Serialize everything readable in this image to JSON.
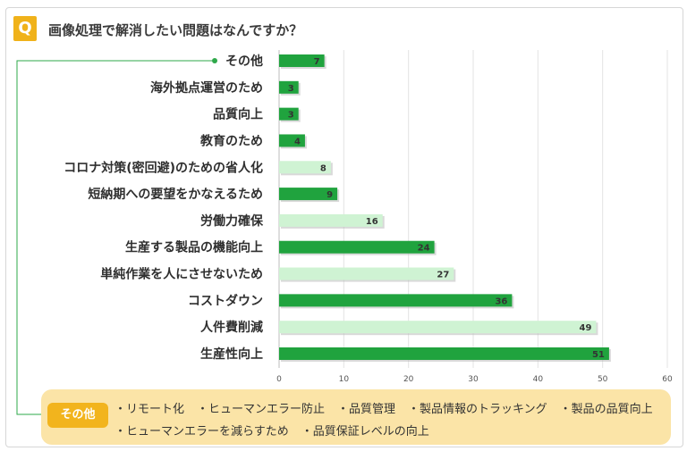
{
  "header": {
    "q_badge": "Q",
    "title": "画像処理で解消したい問題はなんですか？"
  },
  "colors": {
    "bar_dark": "#20a33e",
    "bar_light": "#cff3d3",
    "accent": "#f0b21a",
    "note_bg": "#fbe4a7",
    "connector": "#2ea84a"
  },
  "chart_data": {
    "type": "bar",
    "orientation": "horizontal",
    "categories": [
      "その他",
      "海外拠点運営のため",
      "品質向上",
      "教育のため",
      "コロナ対策(密回避)のための省人化",
      "短納期への要望をかなえるため",
      "労働力確保",
      "生産する製品の機能向上",
      "単純作業を人にさせないため",
      "コストダウン",
      "人件費削減",
      "生産性向上"
    ],
    "values": [
      7,
      3,
      3,
      4,
      8,
      9,
      16,
      24,
      27,
      36,
      49,
      51
    ],
    "bar_shades": [
      "dark",
      "dark",
      "dark",
      "dark",
      "light",
      "dark",
      "light",
      "dark",
      "light",
      "dark",
      "light",
      "dark"
    ],
    "x_ticks": [
      "0",
      "10",
      "20",
      "30",
      "40",
      "50",
      "60"
    ],
    "xlim": [
      0,
      60
    ],
    "grid": true,
    "legend": "none"
  },
  "notes": {
    "tag": "その他",
    "line1": [
      "・リモート化",
      "・ヒューマンエラー防止",
      "・品質管理",
      "・製品情報のトラッキング",
      "・製品の品質向上"
    ],
    "line2": [
      "・ヒューマンエラーを減らすため",
      "・品質保証レベルの向上"
    ]
  }
}
